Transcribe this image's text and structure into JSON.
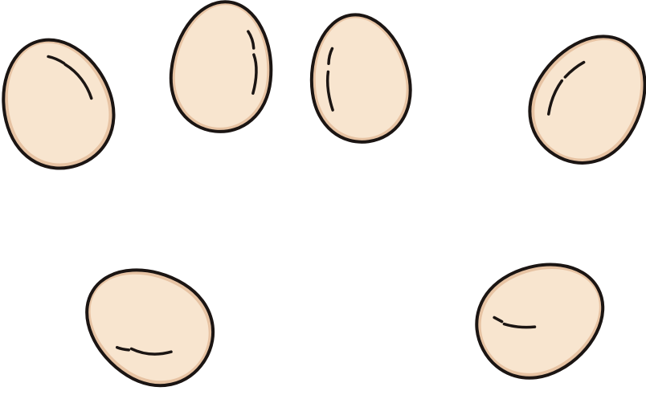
{
  "scene": {
    "subject": "egg-icon",
    "count": 6,
    "colors": {
      "background": "#ffffff",
      "outline": "#1b1513",
      "fill": "#f8e5cf",
      "rim": "#e7c3a3",
      "highlight": "#1b1513"
    }
  }
}
